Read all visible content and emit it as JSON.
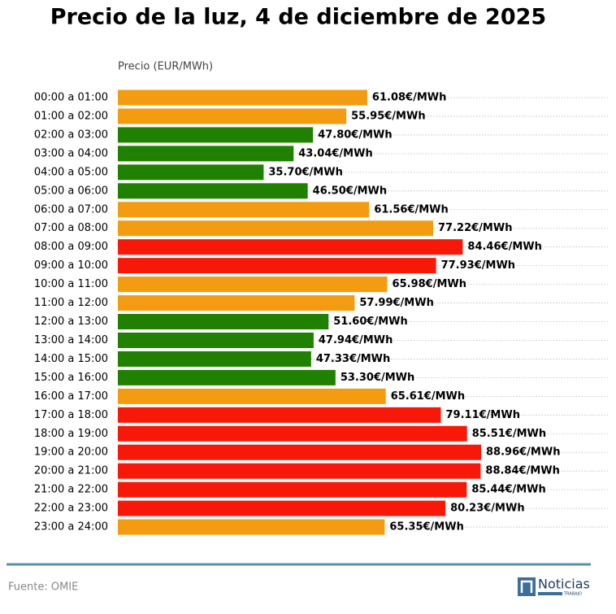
{
  "chart_data": {
    "type": "barh",
    "title": "Precio de la luz, 4 de diciembre de 2025",
    "xlabel": "Precio (EUR/MWh)",
    "categories": [
      "00:00 a 01:00",
      "01:00 a 02:00",
      "02:00 a 03:00",
      "03:00 a 04:00",
      "04:00 a 05:00",
      "05:00 a 06:00",
      "06:00 a 07:00",
      "07:00 a 08:00",
      "08:00 a 09:00",
      "09:00 a 10:00",
      "10:00 a 11:00",
      "11:00 a 12:00",
      "12:00 a 13:00",
      "13:00 a 14:00",
      "14:00 a 15:00",
      "15:00 a 16:00",
      "16:00 a 17:00",
      "17:00 a 18:00",
      "18:00 a 19:00",
      "19:00 a 20:00",
      "20:00 a 21:00",
      "21:00 a 22:00",
      "22:00 a 23:00",
      "23:00 a 24:00"
    ],
    "values": [
      61.08,
      55.95,
      47.8,
      43.04,
      35.7,
      46.5,
      61.56,
      77.22,
      84.46,
      77.93,
      65.98,
      57.99,
      51.6,
      47.94,
      47.33,
      53.3,
      65.61,
      79.11,
      85.51,
      88.96,
      88.84,
      85.44,
      80.23,
      65.35
    ],
    "value_labels": [
      "61.08€/MWh",
      "55.95€/MWh",
      "47.80€/MWh",
      "43.04€/MWh",
      "35.70€/MWh",
      "46.50€/MWh",
      "61.56€/MWh",
      "77.22€/MWh",
      "84.46€/MWh",
      "77.93€/MWh",
      "65.98€/MWh",
      "57.99€/MWh",
      "51.60€/MWh",
      "47.94€/MWh",
      "47.33€/MWh",
      "53.30€/MWh",
      "65.61€/MWh",
      "79.11€/MWh",
      "85.51€/MWh",
      "88.96€/MWh",
      "88.84€/MWh",
      "85.44€/MWh",
      "80.23€/MWh",
      "65.35€/MWh"
    ],
    "colors": [
      "#f39c12",
      "#f39c12",
      "#208000",
      "#208000",
      "#208000",
      "#208000",
      "#f39c12",
      "#f39c12",
      "#f81808",
      "#f81808",
      "#f39c12",
      "#f39c12",
      "#208000",
      "#208000",
      "#208000",
      "#208000",
      "#f39c12",
      "#f81808",
      "#f81808",
      "#f81808",
      "#f81808",
      "#f81808",
      "#f81808",
      "#f39c12"
    ],
    "xlim": [
      0,
      120
    ],
    "grid": true,
    "source": "Fuente: OMIE",
    "logo": {
      "text": "Noticias",
      "subtext": "TRABAJO"
    }
  }
}
